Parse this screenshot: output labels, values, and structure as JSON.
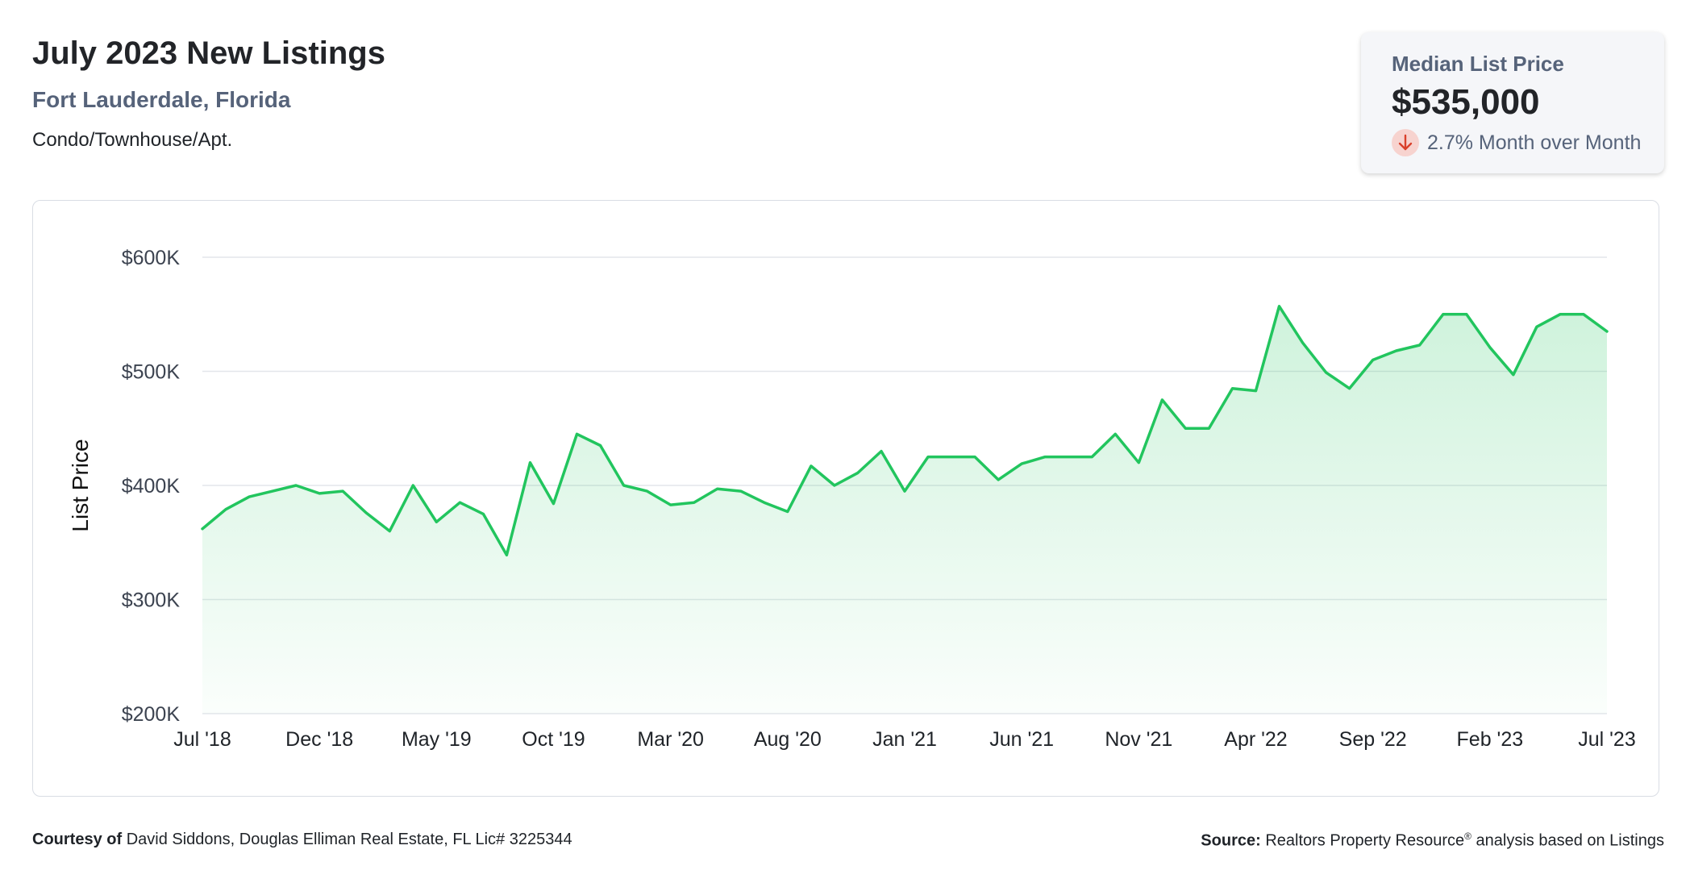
{
  "header": {
    "title": "July 2023 New Listings",
    "location": "Fort Lauderdale, Florida",
    "property_type": "Condo/Townhouse/Apt."
  },
  "stat_card": {
    "label": "Median List Price",
    "value": "$535,000",
    "change_text": "2.7% Month over Month",
    "change_direction": "down",
    "icon": "arrow-down-icon",
    "icon_bg_color": "#f7d3cf",
    "icon_color": "#d9402b"
  },
  "footer": {
    "courtesy_label": "Courtesy of",
    "courtesy_text": "David Siddons, Douglas Elliman Real Estate, FL Lic# 3225344",
    "source_label": "Source:",
    "source_name": "Realtors Property Resource",
    "source_mark": "®",
    "source_text": "analysis based on Listings"
  },
  "colors": {
    "line": "#22c55e",
    "fill_top": "#22c55e",
    "grid": "#e3e6eb",
    "axis_text": "#3c4350"
  },
  "chart_data": {
    "type": "area",
    "title": "",
    "xlabel": "",
    "ylabel": "List Price",
    "ylim": [
      200000,
      600000
    ],
    "yticks": [
      200000,
      300000,
      400000,
      500000,
      600000
    ],
    "ytick_labels": [
      "$200K",
      "$300K",
      "$400K",
      "$500K",
      "$600K"
    ],
    "x_tick_labels": [
      "Jul '18",
      "Dec '18",
      "May '19",
      "Oct '19",
      "Mar '20",
      "Aug '20",
      "Jan '21",
      "Jun '21",
      "Nov '21",
      "Apr '22",
      "Sep '22",
      "Feb '23",
      "Jul '23"
    ],
    "x_tick_step": 5,
    "grid": true,
    "legend": "none",
    "x": [
      "Jul '18",
      "Aug '18",
      "Sep '18",
      "Oct '18",
      "Nov '18",
      "Dec '18",
      "Jan '19",
      "Feb '19",
      "Mar '19",
      "Apr '19",
      "May '19",
      "Jun '19",
      "Jul '19",
      "Aug '19",
      "Sep '19",
      "Oct '19",
      "Nov '19",
      "Dec '19",
      "Jan '20",
      "Feb '20",
      "Mar '20",
      "Apr '20",
      "May '20",
      "Jun '20",
      "Jul '20",
      "Aug '20",
      "Sep '20",
      "Oct '20",
      "Nov '20",
      "Dec '20",
      "Jan '21",
      "Feb '21",
      "Mar '21",
      "Apr '21",
      "May '21",
      "Jun '21",
      "Jul '21",
      "Aug '21",
      "Sep '21",
      "Oct '21",
      "Nov '21",
      "Dec '21",
      "Jan '22",
      "Feb '22",
      "Mar '22",
      "Apr '22",
      "May '22",
      "Jun '22",
      "Jul '22",
      "Aug '22",
      "Sep '22",
      "Oct '22",
      "Nov '22",
      "Dec '22",
      "Jan '23",
      "Feb '23",
      "Mar '23",
      "Apr '23",
      "May '23",
      "Jun '23",
      "Jul '23"
    ],
    "series": [
      {
        "values": [
          362000,
          379000,
          390000,
          395000,
          400000,
          393000,
          395000,
          376000,
          360000,
          400000,
          368000,
          385000,
          375000,
          339000,
          420000,
          384000,
          445000,
          435000,
          400000,
          395000,
          383000,
          385000,
          397000,
          395000,
          385000,
          377000,
          417000,
          400000,
          411000,
          430000,
          395000,
          425000,
          425000,
          425000,
          405000,
          419000,
          425000,
          425000,
          425000,
          445000,
          420000,
          475000,
          450000,
          450000,
          485000,
          483000,
          557000,
          525000,
          499000,
          485000,
          510000,
          518000,
          523000,
          550000,
          550000,
          521000,
          497000,
          539000,
          550000,
          550000,
          535000
        ]
      }
    ]
  }
}
